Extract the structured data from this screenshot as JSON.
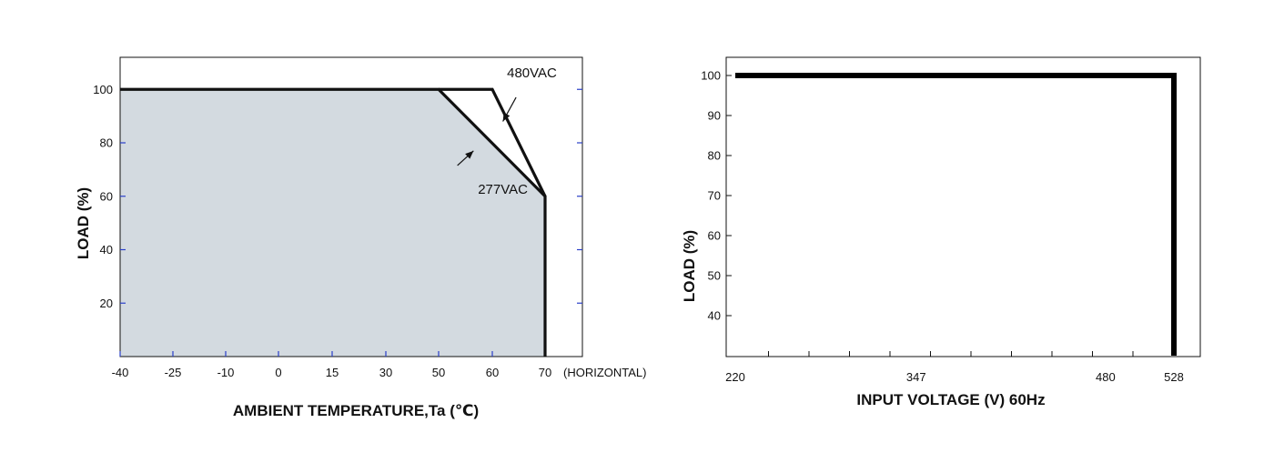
{
  "chart_data": [
    {
      "type": "area",
      "title": "",
      "xlabel": "AMBIENT TEMPERATURE,Ta (℃)",
      "ylabel": "LOAD (%)",
      "x_ticks": [
        -40,
        -25,
        -10,
        0,
        15,
        30,
        50,
        60,
        70
      ],
      "y_ticks": [
        20,
        40,
        60,
        80,
        100
      ],
      "x_suffix_label": "(HORIZONTAL)",
      "xlim": [
        -40,
        77
      ],
      "ylim": [
        0,
        112
      ],
      "grid": false,
      "colors": {
        "fill": "#d3dae0",
        "line": "#111111",
        "tick": "#2a3fc8"
      },
      "series": [
        {
          "name": "277VAC",
          "x": [
            -40,
            50,
            70,
            70
          ],
          "y": [
            100,
            100,
            60,
            0
          ]
        },
        {
          "name": "480VAC",
          "x": [
            50,
            60,
            70
          ],
          "y": [
            100,
            100,
            60
          ]
        }
      ],
      "annotations": [
        {
          "text": "480VAC",
          "x": 67.5,
          "y": 104.5,
          "arrow_from": [
            64.5,
            97
          ],
          "arrow_to": [
            62,
            88
          ]
        },
        {
          "text": "277VAC",
          "x": 62,
          "y": 61,
          "arrow_from": [
            53.5,
            71.5
          ],
          "arrow_to": [
            56.5,
            77
          ]
        }
      ]
    },
    {
      "type": "line",
      "title": "",
      "xlabel": "INPUT VOLTAGE (V) 60Hz",
      "ylabel": "LOAD (%)",
      "x_ticks": [
        220,
        347,
        480,
        528
      ],
      "y_ticks": [
        40,
        50,
        60,
        70,
        80,
        90,
        100
      ],
      "xlim": [
        220,
        528
      ],
      "ylim": [
        30,
        101
      ],
      "grid": false,
      "colors": {
        "line": "#000000"
      },
      "series": [
        {
          "x": [
            220,
            528,
            528
          ],
          "y": [
            100,
            100,
            30
          ]
        }
      ]
    }
  ]
}
